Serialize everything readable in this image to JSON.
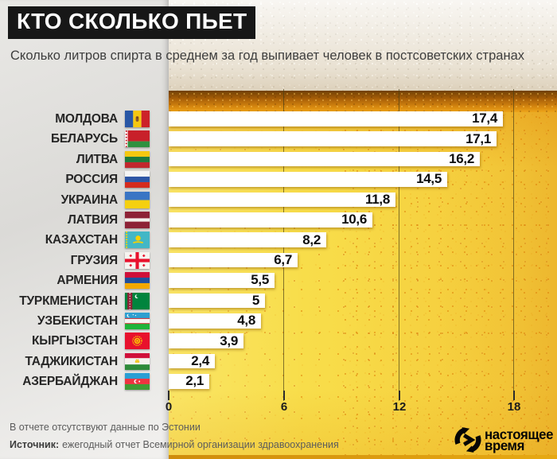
{
  "title": "КТО СКОЛЬКО ПЬЕТ",
  "subtitle": "Сколько литров спирта в среднем за год выпивает человек в постсоветских странах",
  "footnote": "В отчете отсутствуют данные по Эстонии",
  "source": {
    "label": "Источник:",
    "text": "ежегодный отчет Всемирной организации здравоохранения"
  },
  "logo": {
    "line1": "настоящее",
    "line2": "время",
    "icon": "circular-arrows-play-icon"
  },
  "colors": {
    "beer_yellow": "#f8dd4a",
    "amber_band": "#b96f0b",
    "foam": "#ece6db",
    "panel_grey": "#e2e1de",
    "bar_white": "#ffffff",
    "title_bg": "#171717",
    "title_fg": "#ffffff",
    "bubble_orange": "#e2890b"
  },
  "chart_data": {
    "type": "bar",
    "orientation": "horizontal",
    "title": "КТО СКОЛЬКО ПЬЕТ",
    "subtitle": "Сколько литров спирта в среднем за год выпивает человек в постсоветских странах",
    "value_unit": "литров спирта в год на человека",
    "xlim": [
      0,
      18
    ],
    "x_ticks": [
      "0",
      "6",
      "12",
      "18"
    ],
    "grid": "vertical lines at 6, 12, 18",
    "legend": "none",
    "rows": [
      {
        "country": "МОЛДОВА",
        "flag": "moldova",
        "value": 17.4,
        "value_label": "17,4"
      },
      {
        "country": "БЕЛАРУСЬ",
        "flag": "belarus",
        "value": 17.1,
        "value_label": "17,1"
      },
      {
        "country": "ЛИТВА",
        "flag": "lithuania",
        "value": 16.2,
        "value_label": "16,2"
      },
      {
        "country": "РОССИЯ",
        "flag": "russia",
        "value": 14.5,
        "value_label": "14,5"
      },
      {
        "country": "УКРАИНА",
        "flag": "ukraine",
        "value": 11.8,
        "value_label": "11,8"
      },
      {
        "country": "ЛАТВИЯ",
        "flag": "latvia",
        "value": 10.6,
        "value_label": "10,6"
      },
      {
        "country": "КАЗАХСТАН",
        "flag": "kazakhstan",
        "value": 8.2,
        "value_label": "8,2"
      },
      {
        "country": "ГРУЗИЯ",
        "flag": "georgia",
        "value": 6.7,
        "value_label": "6,7"
      },
      {
        "country": "АРМЕНИЯ",
        "flag": "armenia",
        "value": 5.5,
        "value_label": "5,5"
      },
      {
        "country": "ТУРКМЕНИСТАН",
        "flag": "turkmenistan",
        "value": 5,
        "value_label": "5"
      },
      {
        "country": "УЗБЕКИСТАН",
        "flag": "uzbekistan",
        "value": 4.8,
        "value_label": "4,8"
      },
      {
        "country": "КЫРГЫЗСТАН",
        "flag": "kyrgyzstan",
        "value": 3.9,
        "value_label": "3,9"
      },
      {
        "country": "ТАДЖИКИСТАН",
        "flag": "tajikistan",
        "value": 2.4,
        "value_label": "2,4"
      },
      {
        "country": "АЗЕРБАЙДЖАН",
        "flag": "azerbaijan",
        "value": 2.1,
        "value_label": "2,1"
      }
    ]
  }
}
